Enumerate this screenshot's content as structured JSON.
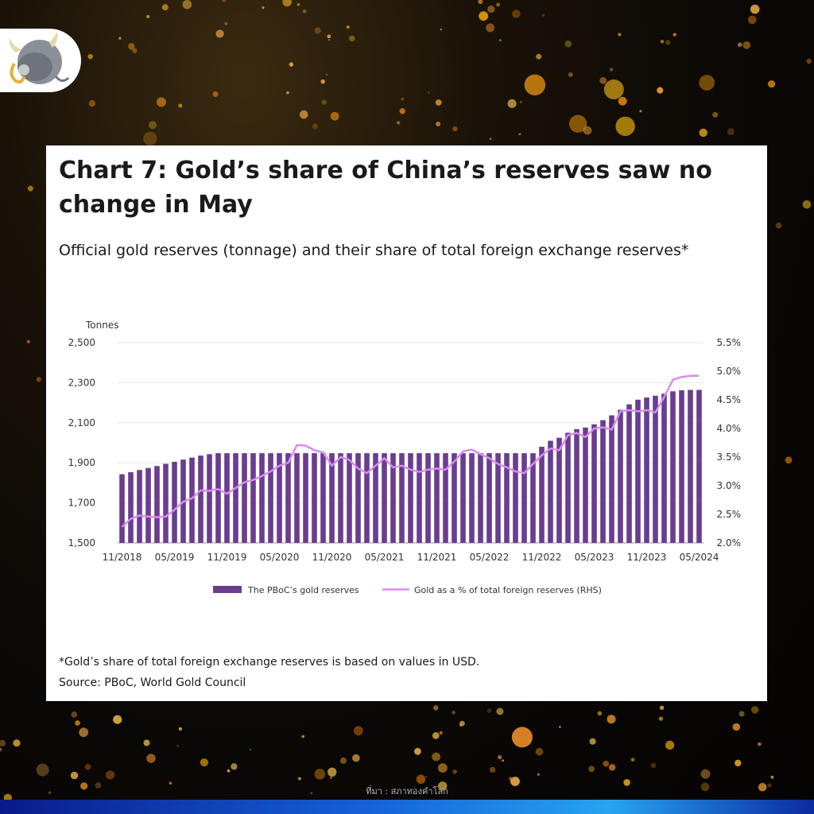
{
  "card": {
    "title": "Chart 7: Gold’s share of China’s reserves saw no change in May",
    "subtitle": "Official gold reserves (tonnage) and their share of total foreign exchange reserves*",
    "note": "*Gold’s share of total foreign exchange reserves is based on values in USD.",
    "source": "Source: PBoC, World Gold Council"
  },
  "footer": {
    "credit": "ที่มา : สภาทองคำโลก"
  },
  "colors": {
    "bar": "#6a3d8f",
    "line": "#d88cf0",
    "grid": "#e6e6e6",
    "text": "#333333"
  },
  "chart_data": {
    "type": "bar",
    "y_unit_label": "Tonnes",
    "ylim_left": [
      1500,
      2500
    ],
    "yticks_left": [
      "2,500",
      "2,300",
      "2,100",
      "1,900",
      "1,700",
      "1,500"
    ],
    "ylim_right": [
      2.0,
      5.5
    ],
    "yticks_right": [
      "5.5%",
      "5.0%",
      "4.5%",
      "4.0%",
      "3.5%",
      "3.0%",
      "2.5%",
      "2.0%"
    ],
    "xtick_labels": [
      "11/2018",
      "05/2019",
      "11/2019",
      "05/2020",
      "11/2020",
      "05/2021",
      "11/2021",
      "05/2022",
      "11/2022",
      "05/2023",
      "11/2023",
      "05/2024"
    ],
    "x": [
      "11/2018",
      "12/2018",
      "01/2019",
      "02/2019",
      "03/2019",
      "04/2019",
      "05/2019",
      "06/2019",
      "07/2019",
      "08/2019",
      "09/2019",
      "10/2019",
      "11/2019",
      "12/2019",
      "01/2020",
      "02/2020",
      "03/2020",
      "04/2020",
      "05/2020",
      "06/2020",
      "07/2020",
      "08/2020",
      "09/2020",
      "10/2020",
      "11/2020",
      "12/2020",
      "01/2021",
      "02/2021",
      "03/2021",
      "04/2021",
      "05/2021",
      "06/2021",
      "07/2021",
      "08/2021",
      "09/2021",
      "10/2021",
      "11/2021",
      "12/2021",
      "01/2022",
      "02/2022",
      "03/2022",
      "04/2022",
      "05/2022",
      "06/2022",
      "07/2022",
      "08/2022",
      "09/2022",
      "10/2022",
      "11/2022",
      "12/2022",
      "01/2023",
      "02/2023",
      "03/2023",
      "04/2023",
      "05/2023",
      "06/2023",
      "07/2023",
      "08/2023",
      "09/2023",
      "10/2023",
      "11/2023",
      "12/2023",
      "01/2024",
      "02/2024",
      "03/2024",
      "04/2024",
      "05/2024"
    ],
    "legend_position": "bottom",
    "grid": true,
    "series": [
      {
        "name": "The PBoC’s gold reserves",
        "type": "bar",
        "axis": "left",
        "values": [
          1843,
          1853,
          1864,
          1874,
          1884,
          1895,
          1905,
          1916,
          1926,
          1936,
          1943,
          1948,
          1948,
          1948,
          1948,
          1948,
          1948,
          1948,
          1948,
          1948,
          1948,
          1948,
          1948,
          1948,
          1948,
          1948,
          1948,
          1948,
          1948,
          1948,
          1948,
          1948,
          1948,
          1948,
          1948,
          1948,
          1948,
          1948,
          1948,
          1948,
          1948,
          1948,
          1948,
          1948,
          1948,
          1948,
          1948,
          1948,
          1980,
          2010,
          2025,
          2050,
          2068,
          2076,
          2092,
          2113,
          2137,
          2165,
          2192,
          2215,
          2226,
          2235,
          2245,
          2257,
          2262,
          2264,
          2264
        ]
      },
      {
        "name": "Gold as a % of total foreign reserves (RHS)",
        "type": "line",
        "axis": "right",
        "values": [
          2.28,
          2.42,
          2.48,
          2.46,
          2.45,
          2.46,
          2.58,
          2.72,
          2.78,
          2.92,
          2.91,
          2.94,
          2.86,
          2.96,
          3.06,
          3.1,
          3.17,
          3.25,
          3.35,
          3.4,
          3.71,
          3.7,
          3.62,
          3.58,
          3.35,
          3.5,
          3.45,
          3.3,
          3.22,
          3.35,
          3.48,
          3.32,
          3.35,
          3.28,
          3.24,
          3.28,
          3.3,
          3.28,
          3.42,
          3.6,
          3.63,
          3.55,
          3.48,
          3.38,
          3.32,
          3.25,
          3.22,
          3.38,
          3.53,
          3.65,
          3.62,
          3.88,
          3.92,
          3.85,
          4.0,
          4.02,
          3.98,
          4.3,
          4.32,
          4.3,
          4.32,
          4.28,
          4.55,
          4.85,
          4.9,
          4.92,
          4.92
        ]
      }
    ]
  }
}
